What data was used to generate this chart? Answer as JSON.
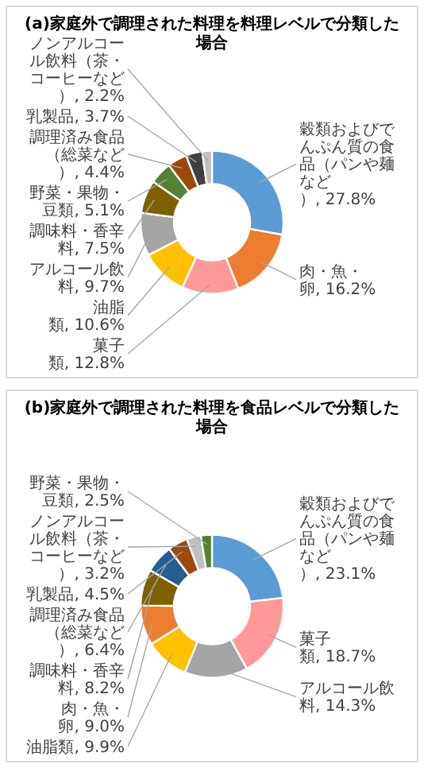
{
  "chart_data": [
    {
      "type": "donut",
      "title": "(a)家庭外で調理された料理を料理レベルで分類した場合",
      "categories": [
        "穀類およびでんぷん質の食品（パンや麺など）",
        "肉・魚・卵",
        "菓子類",
        "油脂類",
        "アルコール飲料",
        "調味料・香辛料",
        "野菜・果物・豆類",
        "調理済み食品（総菜など）",
        "乳製品",
        "ノンアルコール飲料（茶・コーヒーなど）"
      ],
      "values": [
        27.8,
        16.2,
        12.8,
        10.6,
        9.7,
        7.5,
        5.1,
        4.4,
        3.7,
        2.2
      ],
      "value_labels": [
        "27.8%",
        "16.2%",
        "12.8%",
        "10.6%",
        "9.7%",
        "7.5%",
        "5.1%",
        "4.4%",
        "3.7%",
        "2.2%"
      ],
      "colors": [
        "#5b9bd5",
        "#ed7d31",
        "#ff9999",
        "#ffc000",
        "#a5a5a5",
        "#7f6000",
        "#548235",
        "#9e480e",
        "#404040",
        "#bfbfbf"
      ]
    },
    {
      "type": "donut",
      "title": "(b)家庭外で調理された料理を食品レベルで分類した場合",
      "categories": [
        "穀類およびでんぷん質の食品（パンや麺など）",
        "菓子類",
        "アルコール飲料",
        "油脂類",
        "肉・魚・卵",
        "調味料・香辛料",
        "調理済み食品（総菜など）",
        "乳製品",
        "ノンアルコール飲料（茶・コーヒーなど）",
        "野菜・果物・豆類"
      ],
      "values": [
        23.1,
        18.7,
        14.3,
        9.9,
        9.0,
        8.2,
        6.4,
        4.5,
        3.2,
        2.5
      ],
      "value_labels": [
        "23.1%",
        "18.7%",
        "14.3%",
        "9.9%",
        "9.0%",
        "8.2%",
        "6.4%",
        "4.5%",
        "3.2%",
        "2.5%"
      ],
      "colors": [
        "#5b9bd5",
        "#ff9999",
        "#a5a5a5",
        "#ffc000",
        "#ed7d31",
        "#7f6000",
        "#255e91",
        "#9e480e",
        "#bfbfbf",
        "#548235"
      ]
    }
  ]
}
